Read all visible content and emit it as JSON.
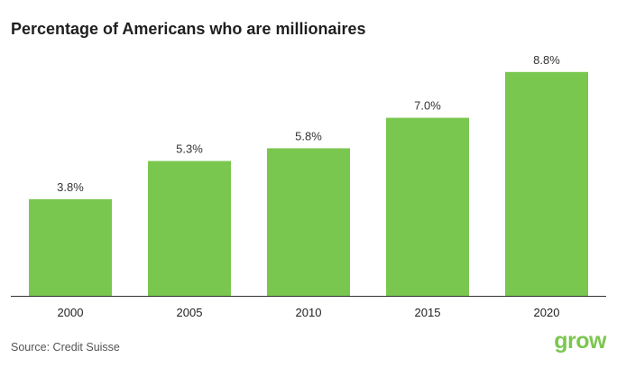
{
  "brand": {
    "logo_text": "grow",
    "accent_color": "#7ac74f"
  },
  "source": "Source: Credit Suisse",
  "chart_data": {
    "type": "bar",
    "title": "Percentage of Americans who are millionaires",
    "xlabel": "",
    "ylabel": "",
    "categories": [
      "2000",
      "2005",
      "2010",
      "2015",
      "2020"
    ],
    "values": [
      3.8,
      5.3,
      5.8,
      7.0,
      8.8
    ],
    "value_labels": [
      "3.8%",
      "5.3%",
      "5.8%",
      "7.0%",
      "8.8%"
    ],
    "ylim": [
      0,
      9
    ],
    "grid": false,
    "bar_color": "#7ac74f",
    "axis_color": "#333333"
  }
}
